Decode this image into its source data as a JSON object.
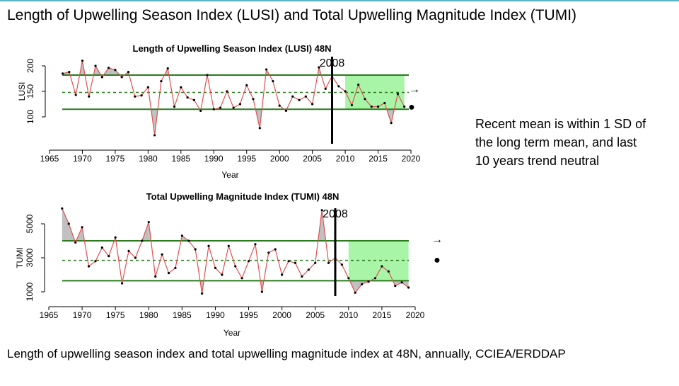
{
  "slide": {
    "title": "Length of Upwelling Season Index (LUSI) and Total Upwelling Magnitude Index (TUMI)",
    "note": "Recent mean is within 1 SD of the long term mean, and last 10 years trend neutral",
    "caption": "Length of upwelling  season index and total upwelling magnitude  index at 48N, annually, CCIEA/ERDDAP"
  },
  "colors": {
    "line": "#e05050",
    "band": "#2a7a1e",
    "recent": "#a8f5a8",
    "shade": "#c0c0c0"
  },
  "chart_data": [
    {
      "type": "line",
      "title": "Length of Upwelling Season Index (LUSI) 48N",
      "xlabel": "Year",
      "ylabel": "LUSI",
      "xlim": [
        1965,
        2020
      ],
      "ylim": [
        100,
        200
      ],
      "xticks": [
        1965,
        1970,
        1975,
        1980,
        1985,
        1990,
        1995,
        2000,
        2005,
        2010,
        2015,
        2020
      ],
      "yticks": [
        100,
        150,
        200
      ],
      "x": [
        1967,
        1968,
        1969,
        1970,
        1971,
        1972,
        1973,
        1974,
        1975,
        1976,
        1977,
        1978,
        1979,
        1980,
        1981,
        1982,
        1983,
        1984,
        1985,
        1986,
        1987,
        1988,
        1989,
        1990,
        1991,
        1992,
        1993,
        1994,
        1995,
        1996,
        1997,
        1998,
        1999,
        2000,
        2001,
        2002,
        2003,
        2004,
        2005,
        2006,
        2007,
        2008,
        2009,
        2010,
        2011,
        2012,
        2013,
        2014,
        2015,
        2016,
        2017,
        2018,
        2019
      ],
      "values": [
        185,
        188,
        143,
        210,
        140,
        200,
        178,
        196,
        192,
        178,
        188,
        140,
        142,
        158,
        64,
        170,
        195,
        120,
        158,
        138,
        133,
        112,
        182,
        115,
        118,
        150,
        118,
        125,
        162,
        135,
        78,
        193,
        170,
        122,
        112,
        140,
        133,
        140,
        125,
        197,
        155,
        180,
        160,
        150,
        123,
        163,
        135,
        120,
        120,
        127,
        88,
        145,
        120
      ],
      "mean": 148,
      "sd_upper": 182,
      "sd_lower": 115,
      "recent_window": [
        2010,
        2019
      ],
      "marker_year": 2008,
      "marker_label": "2008",
      "trend_symbol": "→",
      "mean_symbol": "●"
    },
    {
      "type": "line",
      "title": "Total Upwelling Magnitude Index (TUMI) 48N",
      "xlabel": "Year",
      "ylabel": "TUMI",
      "xlim": [
        1965,
        2020
      ],
      "ylim": [
        1000,
        5000
      ],
      "xticks": [
        1965,
        1970,
        1975,
        1980,
        1985,
        1990,
        1995,
        2000,
        2005,
        2010,
        2015,
        2020
      ],
      "yticks": [
        1000,
        3000,
        5000
      ],
      "x": [
        1967,
        1968,
        1969,
        1970,
        1971,
        1972,
        1973,
        1974,
        1975,
        1976,
        1977,
        1978,
        1979,
        1980,
        1981,
        1982,
        1983,
        1984,
        1985,
        1986,
        1987,
        1988,
        1989,
        1990,
        1991,
        1992,
        1993,
        1994,
        1995,
        1996,
        1997,
        1998,
        1999,
        2000,
        2001,
        2002,
        2003,
        2004,
        2005,
        2006,
        2007,
        2008,
        2009,
        2010,
        2011,
        2012,
        2013,
        2014,
        2015,
        2016,
        2017,
        2018,
        2019
      ],
      "values": [
        5900,
        5000,
        3900,
        4800,
        2500,
        2800,
        3600,
        3100,
        4200,
        1500,
        3400,
        3000,
        4000,
        5100,
        1900,
        3200,
        2100,
        2400,
        4300,
        4000,
        3500,
        900,
        3700,
        2400,
        2000,
        3700,
        2500,
        1800,
        2800,
        3800,
        1000,
        3300,
        3500,
        2000,
        2800,
        2700,
        1900,
        2300,
        2700,
        5800,
        2700,
        3000,
        2600,
        1800,
        950,
        1450,
        1600,
        1800,
        2500,
        2200,
        1350,
        1550,
        1250
      ],
      "mean": 2850,
      "sd_upper": 4000,
      "sd_lower": 1650,
      "recent_window": [
        2010,
        2019
      ],
      "marker_year": 2008,
      "marker_label": "2008",
      "trend_symbol": "→",
      "mean_symbol": "●"
    }
  ]
}
